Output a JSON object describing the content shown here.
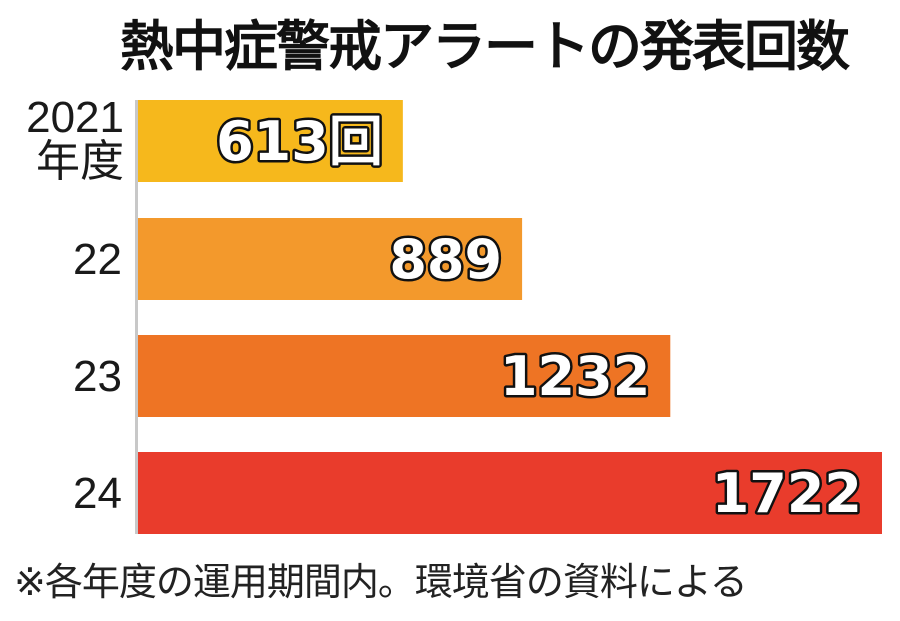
{
  "chart_data": {
    "type": "bar",
    "orientation": "horizontal",
    "title": "熱中症警戒アラートの発表回数",
    "categories": [
      [
        "2021",
        "年度"
      ],
      [
        "22"
      ],
      [
        "23"
      ],
      [
        "24"
      ]
    ],
    "values": [
      613,
      889,
      1232,
      1722
    ],
    "data_labels": [
      "613回",
      "889",
      "1232",
      "1722"
    ],
    "bar_colors": [
      "#f6b81c",
      "#f3992c",
      "#ee7424",
      "#e93c2c"
    ],
    "axis_line_color": "#c8c8c8",
    "note": "※各年度の運用期間内。環境省の資料による"
  }
}
